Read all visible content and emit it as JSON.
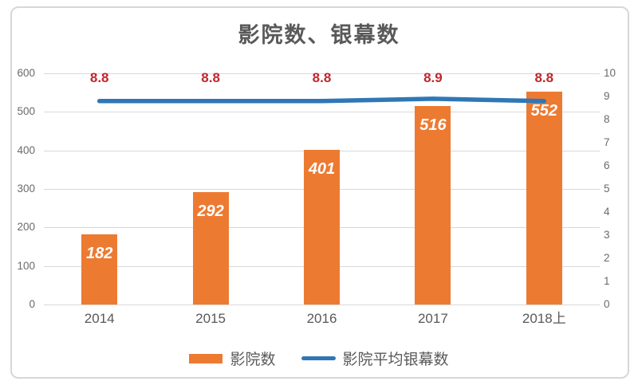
{
  "title": "影院数、银幕数",
  "chart_data": {
    "type": "bar",
    "categories": [
      "2014",
      "2015",
      "2016",
      "2017",
      "2018上"
    ],
    "series": [
      {
        "name": "影院数",
        "type": "bar",
        "axis": "left",
        "values": [
          182,
          292,
          401,
          516,
          552
        ],
        "labels": [
          "182",
          "292",
          "401",
          "516",
          "552"
        ],
        "color": "#ED7A31",
        "label_color": "#FFFFFF"
      },
      {
        "name": "影院平均银幕数",
        "type": "line",
        "axis": "right",
        "values": [
          8.8,
          8.8,
          8.8,
          8.9,
          8.8
        ],
        "labels": [
          "8.8",
          "8.8",
          "8.8",
          "8.9",
          "8.8"
        ],
        "color": "#2F77B6",
        "label_color": "#C0262B"
      }
    ],
    "left_axis": {
      "min": 0,
      "max": 600,
      "step": 100,
      "ticks": [
        "0",
        "100",
        "200",
        "300",
        "400",
        "500",
        "600"
      ]
    },
    "right_axis": {
      "min": 0,
      "max": 10,
      "step": 1,
      "ticks": [
        "0",
        "1",
        "2",
        "3",
        "4",
        "5",
        "6",
        "7",
        "8",
        "9",
        "10"
      ]
    },
    "grid": true,
    "legend_position": "bottom",
    "colors": {
      "grid": "#D8D8D8",
      "axis_text": "#6A6A6A",
      "title_text": "#595959",
      "category_text": "#595959",
      "legend_text": "#595959",
      "border": "#D7D7D7",
      "background": "#FFFFFF"
    }
  }
}
